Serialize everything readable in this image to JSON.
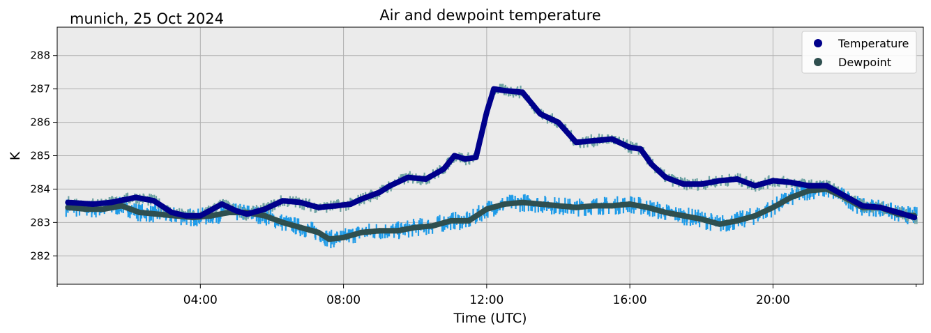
{
  "header": {
    "location_date": "munich, 25 Oct 2024",
    "title": "Air and dewpoint temperature"
  },
  "chart_data": {
    "type": "line",
    "title": "Air and dewpoint temperature",
    "xlabel": "Time (UTC)",
    "ylabel": "K",
    "x_unit": "hours UTC",
    "xlim": [
      0,
      24.2
    ],
    "ylim": [
      281.15,
      288.85
    ],
    "xticks": [
      4,
      8,
      12,
      16,
      20
    ],
    "xtick_labels": [
      "04:00",
      "08:00",
      "12:00",
      "16:00",
      "20:00"
    ],
    "yticks": [
      282,
      283,
      284,
      285,
      286,
      287,
      288
    ],
    "ytick_labels": [
      "282",
      "283",
      "284",
      "285",
      "286",
      "287",
      "288"
    ],
    "grid": true,
    "legend_position": "top-right",
    "legend": [
      {
        "label": "Temperature",
        "color": "#00008b"
      },
      {
        "label": "Dewpoint",
        "color": "#2f4f4f"
      }
    ],
    "series": [
      {
        "name": "Temperature",
        "color": "#00008b",
        "raw_color": "#6fa3a3",
        "raw_noise_k": 0.2,
        "x": [
          0.3,
          1.0,
          1.5,
          2.2,
          2.7,
          3.2,
          3.6,
          4.0,
          4.6,
          5.0,
          5.3,
          5.8,
          6.3,
          6.8,
          7.3,
          7.8,
          8.2,
          8.5,
          9.0,
          9.3,
          9.8,
          10.3,
          10.8,
          11.1,
          11.4,
          11.7,
          12.0,
          12.2,
          12.5,
          13.0,
          13.5,
          14.0,
          14.5,
          15.0,
          15.5,
          16.0,
          16.3,
          16.6,
          17.0,
          17.5,
          18.0,
          18.5,
          19.0,
          19.5,
          20.0,
          20.5,
          21.0,
          21.5,
          22.0,
          22.5,
          23.0,
          23.5,
          23.95
        ],
        "y": [
          283.6,
          283.55,
          283.6,
          283.75,
          283.65,
          283.3,
          283.2,
          283.2,
          283.55,
          283.35,
          283.25,
          283.4,
          283.65,
          283.6,
          283.45,
          283.5,
          283.55,
          283.7,
          283.9,
          284.1,
          284.35,
          284.3,
          284.6,
          285.0,
          284.9,
          284.95,
          286.3,
          287.0,
          286.95,
          286.9,
          286.25,
          286.0,
          285.4,
          285.45,
          285.5,
          285.25,
          285.2,
          284.75,
          284.35,
          284.15,
          284.15,
          284.25,
          284.3,
          284.1,
          284.25,
          284.2,
          284.1,
          284.1,
          283.8,
          283.5,
          283.45,
          283.3,
          283.15
        ]
      },
      {
        "name": "Dewpoint",
        "color": "#2f4f4f",
        "raw_color": "#1e9be8",
        "raw_noise_k": 0.28,
        "x": [
          0.3,
          0.8,
          1.3,
          1.8,
          2.3,
          2.8,
          3.3,
          3.8,
          4.3,
          4.8,
          5.3,
          5.8,
          6.3,
          6.8,
          7.3,
          7.6,
          8.0,
          8.5,
          9.0,
          9.5,
          10.0,
          10.5,
          11.0,
          11.5,
          12.0,
          12.5,
          13.0,
          13.5,
          14.0,
          14.5,
          15.0,
          15.5,
          16.0,
          16.5,
          17.0,
          17.5,
          18.0,
          18.5,
          19.0,
          19.5,
          20.0,
          20.5,
          21.0,
          21.5,
          22.0,
          22.5,
          23.0,
          23.5,
          23.95
        ],
        "y": [
          283.45,
          283.4,
          283.4,
          283.5,
          283.3,
          283.25,
          283.2,
          283.15,
          283.2,
          283.3,
          283.3,
          283.2,
          283.0,
          282.85,
          282.7,
          282.5,
          282.55,
          282.7,
          282.75,
          282.75,
          282.85,
          282.9,
          283.05,
          283.05,
          283.4,
          283.55,
          283.6,
          283.55,
          283.5,
          283.45,
          283.5,
          283.5,
          283.55,
          283.45,
          283.3,
          283.2,
          283.1,
          282.95,
          283.05,
          283.2,
          283.45,
          283.75,
          283.95,
          284.0,
          283.75,
          283.45,
          283.45,
          283.25,
          283.2
        ]
      }
    ]
  }
}
